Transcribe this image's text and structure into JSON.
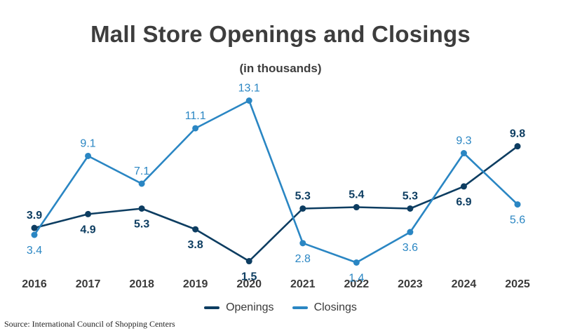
{
  "chart_data": {
    "type": "line",
    "title": "Mall Store Openings and Closings",
    "subtitle": "(in thousands)",
    "categories": [
      "2016",
      "2017",
      "2018",
      "2019",
      "2020",
      "2021",
      "2022",
      "2023",
      "2024",
      "2025"
    ],
    "series": [
      {
        "name": "Openings",
        "color": "#0d3d61",
        "values": [
          3.9,
          4.9,
          5.3,
          3.8,
          1.5,
          5.3,
          5.4,
          5.3,
          6.9,
          9.8
        ]
      },
      {
        "name": "Closings",
        "color": "#2a86c3",
        "values": [
          3.4,
          9.1,
          7.1,
          11.1,
          13.1,
          2.8,
          1.4,
          3.6,
          9.3,
          5.6
        ]
      }
    ],
    "ylim": [
      0,
      14
    ],
    "grid": false,
    "legend_position": "bottom",
    "source": "Source: International Council of Shopping Centers"
  }
}
